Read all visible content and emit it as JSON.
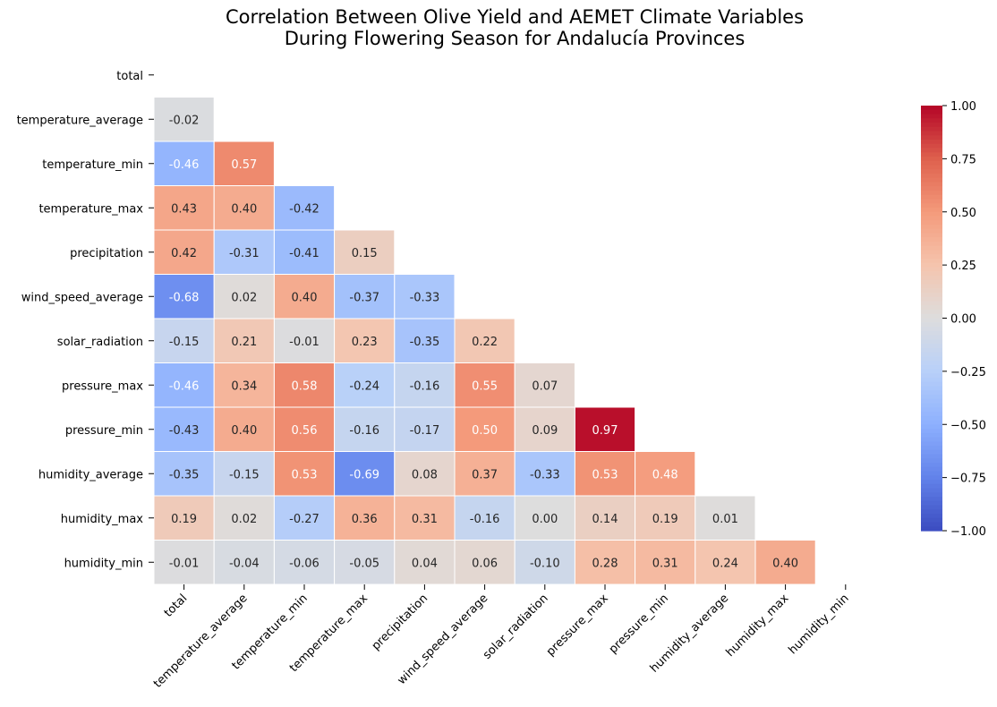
{
  "chart_data": {
    "type": "heatmap",
    "title_line1": "Correlation Between Olive Yield and AEMET Climate Variables",
    "title_line2": "During Flowering Season for Andalucía Provinces",
    "variables": [
      "total",
      "temperature_average",
      "temperature_min",
      "temperature_max",
      "precipitation",
      "wind_speed_average",
      "solar_radiation",
      "pressure_max",
      "pressure_min",
      "humidity_average",
      "humidity_max",
      "humidity_min"
    ],
    "mask": "upper-triangle-including-diagonal",
    "matrix": [
      [
        null,
        null,
        null,
        null,
        null,
        null,
        null,
        null,
        null,
        null,
        null,
        null
      ],
      [
        -0.02,
        null,
        null,
        null,
        null,
        null,
        null,
        null,
        null,
        null,
        null,
        null
      ],
      [
        -0.46,
        0.57,
        null,
        null,
        null,
        null,
        null,
        null,
        null,
        null,
        null,
        null
      ],
      [
        0.43,
        0.4,
        -0.42,
        null,
        null,
        null,
        null,
        null,
        null,
        null,
        null,
        null
      ],
      [
        0.42,
        -0.31,
        -0.41,
        0.15,
        null,
        null,
        null,
        null,
        null,
        null,
        null,
        null
      ],
      [
        -0.68,
        0.02,
        0.4,
        -0.37,
        -0.33,
        null,
        null,
        null,
        null,
        null,
        null,
        null
      ],
      [
        -0.15,
        0.21,
        -0.01,
        0.23,
        -0.35,
        0.22,
        null,
        null,
        null,
        null,
        null,
        null
      ],
      [
        -0.46,
        0.34,
        0.58,
        -0.24,
        -0.16,
        0.55,
        0.07,
        null,
        null,
        null,
        null,
        null
      ],
      [
        -0.43,
        0.4,
        0.56,
        -0.16,
        -0.17,
        0.5,
        0.09,
        0.97,
        null,
        null,
        null,
        null
      ],
      [
        -0.35,
        -0.15,
        0.53,
        -0.69,
        0.08,
        0.37,
        -0.33,
        0.53,
        0.48,
        null,
        null,
        null
      ],
      [
        0.19,
        0.02,
        -0.27,
        0.36,
        0.31,
        -0.16,
        0.0,
        0.14,
        0.19,
        0.01,
        null,
        null
      ],
      [
        -0.01,
        -0.04,
        -0.06,
        -0.05,
        0.04,
        0.06,
        -0.1,
        0.28,
        0.31,
        0.24,
        0.4,
        null
      ]
    ],
    "colorbar": {
      "colormap": "coolwarm",
      "vmin": -1.0,
      "vmax": 1.0,
      "ticks": [
        1.0,
        0.75,
        0.5,
        0.25,
        0.0,
        -0.25,
        -0.5,
        -0.75,
        -1.0
      ],
      "tick_labels": [
        "1.00",
        "0.75",
        "0.50",
        "0.25",
        "0.00",
        "−0.25",
        "−0.50",
        "−0.75",
        "−1.00"
      ]
    },
    "annotation_format": "0.00"
  }
}
